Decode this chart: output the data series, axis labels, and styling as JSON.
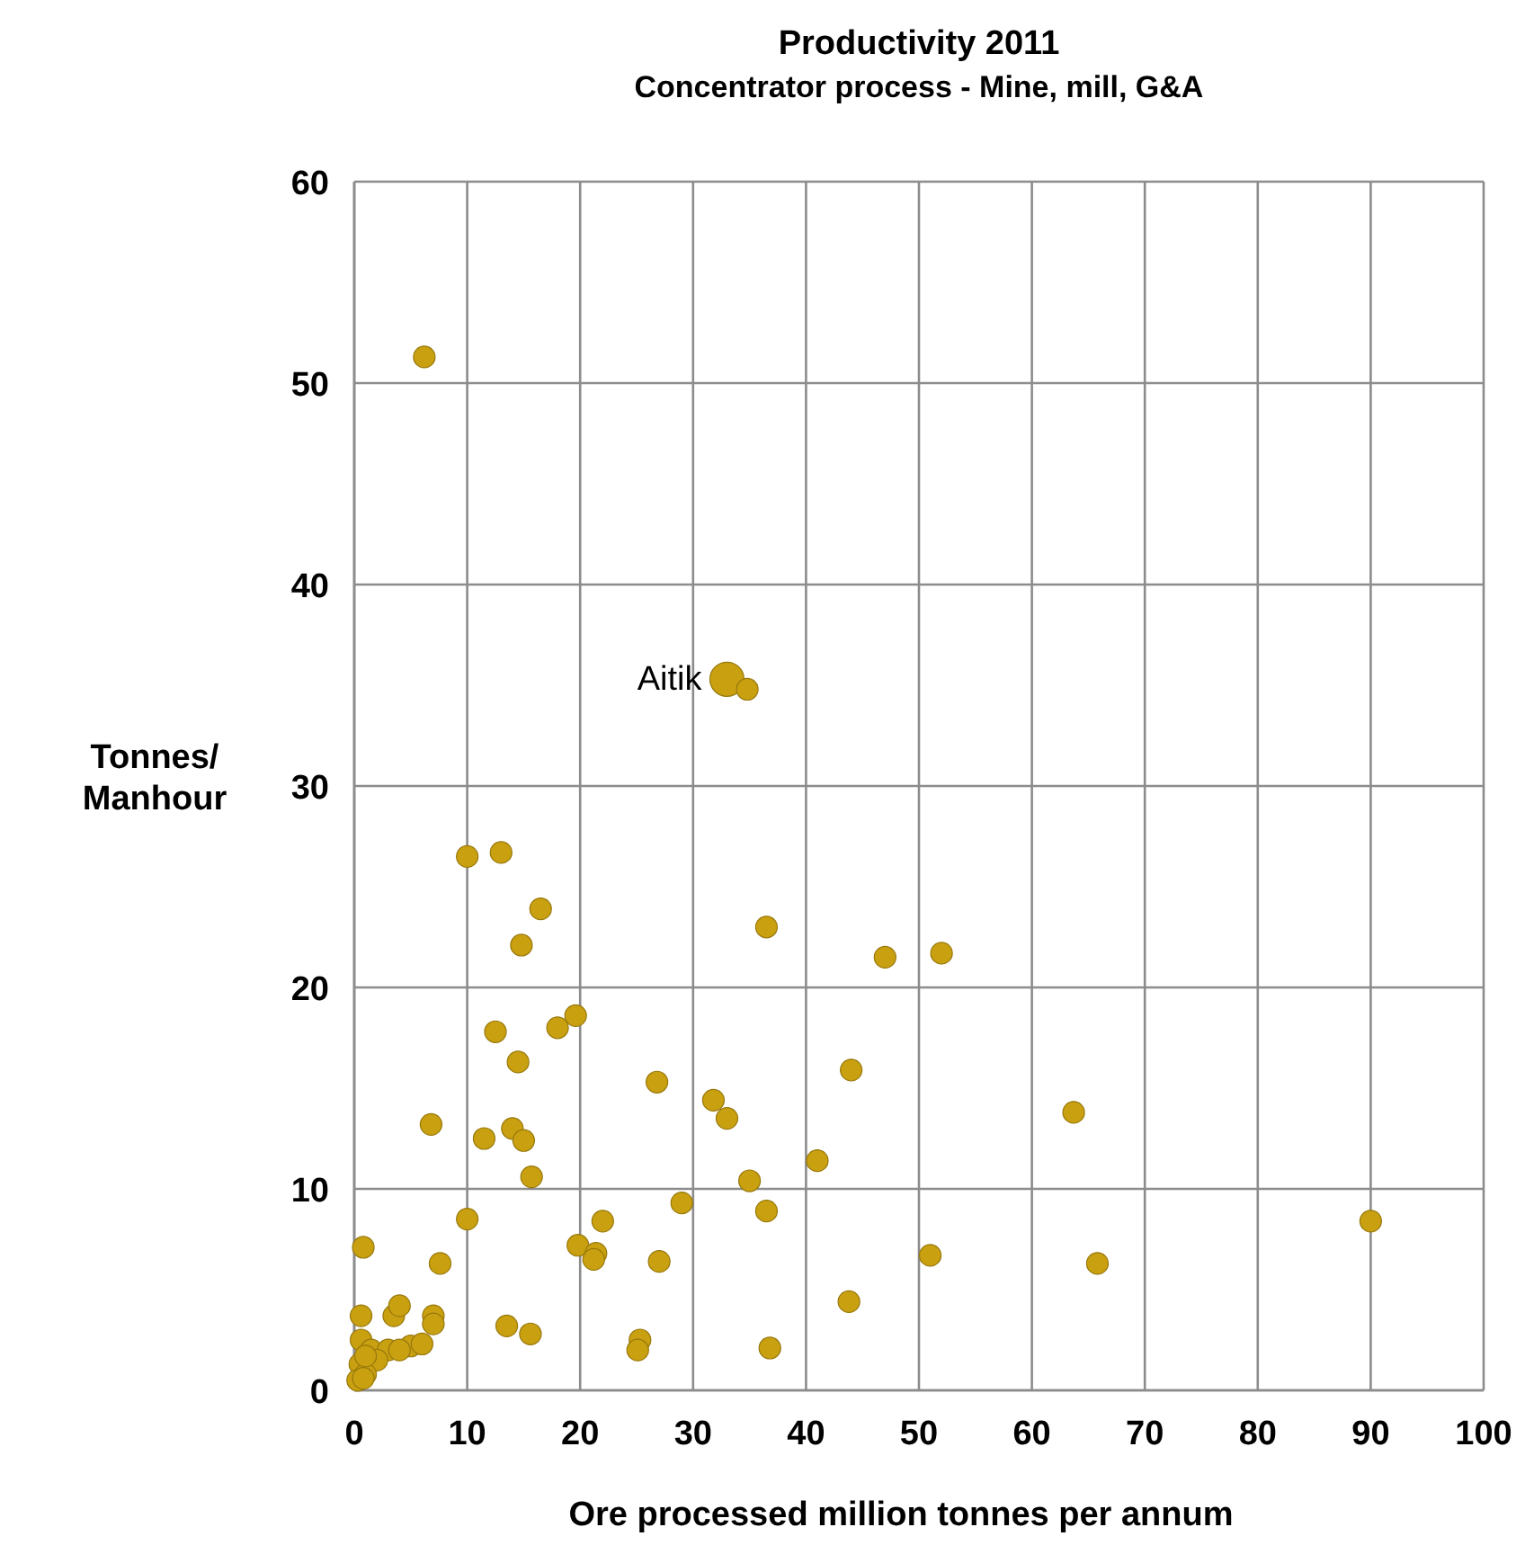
{
  "chart_data": {
    "type": "bubble",
    "title": "Productivity 2011",
    "subtitle": "Concentrator process - Mine, mill, G&A",
    "xlabel": "Ore processed million tonnes per annum",
    "ylabel": "Tonnes/ Manhour",
    "xlim": [
      0,
      100
    ],
    "xticks": [
      0,
      10,
      20,
      30,
      40,
      50,
      60,
      70,
      80,
      90,
      100
    ],
    "ylim": [
      0,
      60
    ],
    "yticks": [
      0,
      10,
      20,
      30,
      40,
      50,
      60
    ],
    "grid": true,
    "marker": "circle",
    "annotations": [
      {
        "text": "Aitik",
        "x": 33,
        "y": 35.3
      }
    ],
    "series": [
      {
        "color": "#c9a010",
        "x": [
          33,
          6.2,
          34.8,
          10,
          13,
          16.5,
          14.8,
          36.5,
          47,
          52,
          19.6,
          18,
          12.5,
          14.5,
          44,
          26.8,
          31.8,
          33,
          63.7,
          6.8,
          11.5,
          14,
          15,
          15.7,
          41,
          35,
          10,
          22,
          90,
          29,
          36.5,
          0.8,
          7.6,
          19.8,
          21.4,
          21.2,
          27,
          51,
          65.8,
          43.8,
          13.5,
          15.6,
          25.3,
          25.1,
          36.8,
          0.6,
          3.5,
          4,
          7,
          7,
          0.6,
          1.5,
          3,
          5,
          6,
          0.5,
          2,
          1,
          0.3,
          0.8,
          4,
          1
        ],
        "values": [
          35.3,
          51.3,
          34.8,
          26.5,
          26.7,
          23.9,
          22.1,
          23,
          21.5,
          21.7,
          18.6,
          18,
          17.8,
          16.3,
          15.9,
          15.3,
          14.4,
          13.5,
          13.8,
          13.2,
          12.5,
          13,
          12.4,
          10.6,
          11.4,
          10.4,
          8.5,
          8.4,
          8.4,
          9.3,
          8.9,
          7.1,
          6.3,
          7.2,
          6.8,
          6.5,
          6.4,
          6.7,
          6.3,
          4.4,
          3.2,
          2.8,
          2.5,
          2,
          2.1,
          3.7,
          3.7,
          4.2,
          3.7,
          3.3,
          2.5,
          2,
          2,
          2.2,
          2.3,
          1.3,
          1.5,
          0.8,
          0.5,
          0.6,
          2,
          1.7
        ],
        "sizes": [
          1,
          0.4,
          0.4,
          0.4,
          0.4,
          0.4,
          0.4,
          0.4,
          0.4,
          0.4,
          0.4,
          0.4,
          0.4,
          0.4,
          0.4,
          0.4,
          0.4,
          0.4,
          0.4,
          0.4,
          0.4,
          0.4,
          0.4,
          0.4,
          0.4,
          0.4,
          0.4,
          0.4,
          0.4,
          0.4,
          0.4,
          0.4,
          0.4,
          0.4,
          0.4,
          0.4,
          0.4,
          0.4,
          0.4,
          0.4,
          0.4,
          0.4,
          0.4,
          0.4,
          0.4,
          0.4,
          0.4,
          0.4,
          0.4,
          0.4,
          0.4,
          0.4,
          0.4,
          0.4,
          0.4,
          0.4,
          0.4,
          0.4,
          0.4,
          0.4,
          0.4,
          0.4
        ]
      }
    ]
  }
}
